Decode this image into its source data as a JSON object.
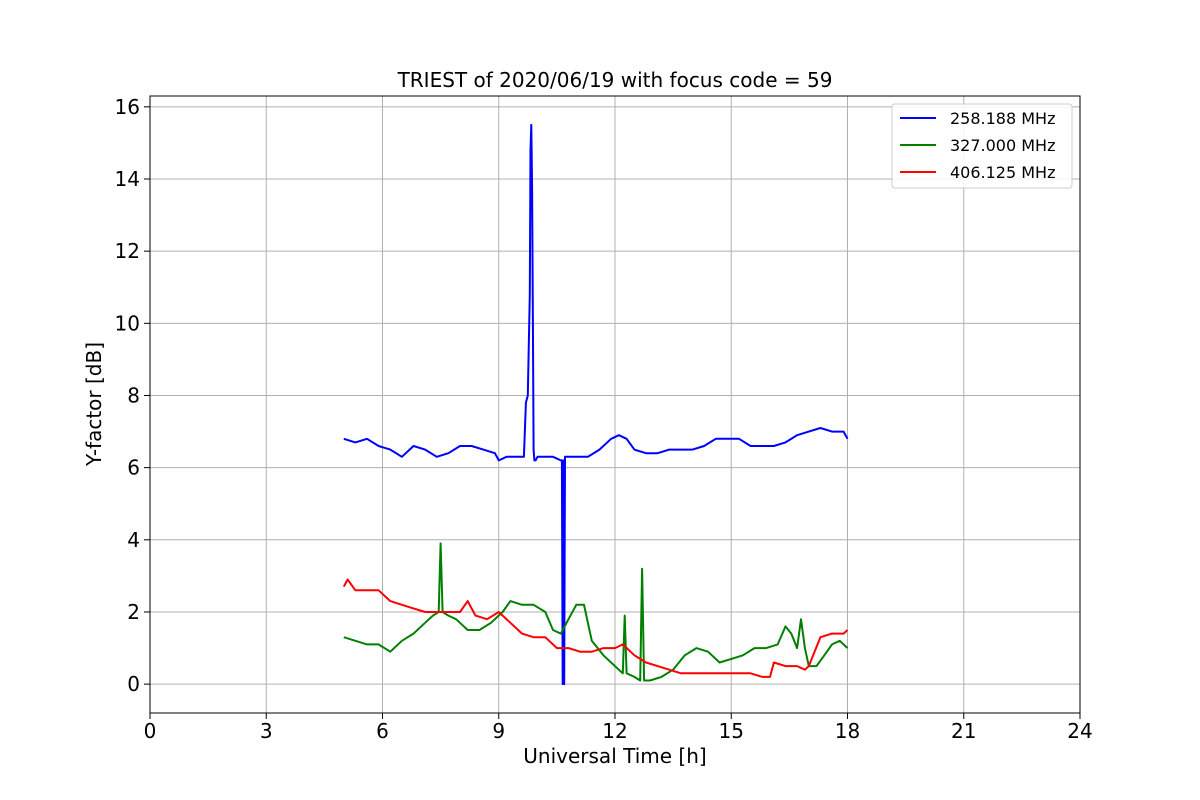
{
  "chart_data": {
    "type": "line",
    "title": "TRIEST of 2020/06/19 with focus code = 59",
    "xlabel": "Universal Time [h]",
    "ylabel": "Y-factor [dB]",
    "xlim": [
      0,
      24
    ],
    "ylim": [
      -0.8,
      16.3
    ],
    "xticks": [
      0,
      3,
      6,
      9,
      12,
      15,
      18,
      21,
      24
    ],
    "yticks": [
      0,
      2,
      4,
      6,
      8,
      10,
      12,
      14,
      16
    ],
    "grid": true,
    "legend_position": "top-right",
    "series": [
      {
        "name": "258.188 MHz",
        "color": "#0000ff",
        "x": [
          5.0,
          5.3,
          5.6,
          5.9,
          6.2,
          6.5,
          6.8,
          7.1,
          7.4,
          7.7,
          8.0,
          8.3,
          8.6,
          8.9,
          9.0,
          9.2,
          9.5,
          9.65,
          9.7,
          9.75,
          9.8,
          9.82,
          9.84,
          9.86,
          9.88,
          9.9,
          9.92,
          9.95,
          10.0,
          10.2,
          10.4,
          10.6,
          10.63,
          10.65,
          10.67,
          10.69,
          10.71,
          10.75,
          11.0,
          11.3,
          11.6,
          11.9,
          12.1,
          12.3,
          12.5,
          12.8,
          13.1,
          13.4,
          13.7,
          14.0,
          14.3,
          14.6,
          14.9,
          15.2,
          15.5,
          15.8,
          16.1,
          16.4,
          16.7,
          17.0,
          17.3,
          17.6,
          17.9,
          18.0
        ],
        "y": [
          6.8,
          6.7,
          6.8,
          6.6,
          6.5,
          6.3,
          6.6,
          6.5,
          6.3,
          6.4,
          6.6,
          6.6,
          6.5,
          6.4,
          6.2,
          6.3,
          6.3,
          6.3,
          7.8,
          8.0,
          10.8,
          14.8,
          15.5,
          13.7,
          10.0,
          6.5,
          6.2,
          6.2,
          6.3,
          6.3,
          6.3,
          6.2,
          6.2,
          0.0,
          6.2,
          0.0,
          6.3,
          6.3,
          6.3,
          6.3,
          6.5,
          6.8,
          6.9,
          6.8,
          6.5,
          6.4,
          6.4,
          6.5,
          6.5,
          6.5,
          6.6,
          6.8,
          6.8,
          6.8,
          6.6,
          6.6,
          6.6,
          6.7,
          6.9,
          7.0,
          7.1,
          7.0,
          7.0,
          6.8
        ]
      },
      {
        "name": "327.000 MHz",
        "color": "#008000",
        "x": [
          5.0,
          5.3,
          5.6,
          5.9,
          6.2,
          6.5,
          6.8,
          7.1,
          7.3,
          7.45,
          7.5,
          7.55,
          7.7,
          7.9,
          8.2,
          8.5,
          8.8,
          9.1,
          9.3,
          9.6,
          9.9,
          10.2,
          10.4,
          10.6,
          10.8,
          11.0,
          11.2,
          11.4,
          11.7,
          12.0,
          12.2,
          12.25,
          12.3,
          12.5,
          12.65,
          12.7,
          12.75,
          12.9,
          13.2,
          13.5,
          13.8,
          14.1,
          14.4,
          14.7,
          15.0,
          15.3,
          15.6,
          15.9,
          16.2,
          16.4,
          16.55,
          16.7,
          16.8,
          16.9,
          17.0,
          17.2,
          17.4,
          17.6,
          17.8,
          18.0
        ],
        "y": [
          1.3,
          1.2,
          1.1,
          1.1,
          0.9,
          1.2,
          1.4,
          1.7,
          1.9,
          2.0,
          3.9,
          2.0,
          1.9,
          1.8,
          1.5,
          1.5,
          1.7,
          2.0,
          2.3,
          2.2,
          2.2,
          2.0,
          1.5,
          1.4,
          1.8,
          2.2,
          2.2,
          1.2,
          0.8,
          0.5,
          0.3,
          1.9,
          0.3,
          0.2,
          0.1,
          3.2,
          0.1,
          0.1,
          0.2,
          0.4,
          0.8,
          1.0,
          0.9,
          0.6,
          0.7,
          0.8,
          1.0,
          1.0,
          1.1,
          1.6,
          1.4,
          1.0,
          1.8,
          1.0,
          0.5,
          0.5,
          0.8,
          1.1,
          1.2,
          1.0
        ]
      },
      {
        "name": "406.125 MHz",
        "color": "#ff0000",
        "x": [
          5.0,
          5.1,
          5.3,
          5.6,
          5.9,
          6.2,
          6.5,
          6.8,
          7.1,
          7.4,
          7.7,
          8.0,
          8.2,
          8.4,
          8.7,
          9.0,
          9.3,
          9.6,
          9.9,
          10.2,
          10.5,
          10.8,
          11.1,
          11.4,
          11.7,
          12.0,
          12.2,
          12.5,
          12.8,
          13.1,
          13.4,
          13.7,
          14.0,
          14.3,
          14.6,
          14.9,
          15.2,
          15.5,
          15.8,
          16.0,
          16.1,
          16.4,
          16.7,
          16.9,
          17.0,
          17.3,
          17.6,
          17.9,
          18.0
        ],
        "y": [
          2.7,
          2.9,
          2.6,
          2.6,
          2.6,
          2.3,
          2.2,
          2.1,
          2.0,
          2.0,
          2.0,
          2.0,
          2.3,
          1.9,
          1.8,
          2.0,
          1.7,
          1.4,
          1.3,
          1.3,
          1.0,
          1.0,
          0.9,
          0.9,
          1.0,
          1.0,
          1.1,
          0.8,
          0.6,
          0.5,
          0.4,
          0.3,
          0.3,
          0.3,
          0.3,
          0.3,
          0.3,
          0.3,
          0.2,
          0.2,
          0.6,
          0.5,
          0.5,
          0.4,
          0.5,
          1.3,
          1.4,
          1.4,
          1.5
        ]
      }
    ]
  }
}
